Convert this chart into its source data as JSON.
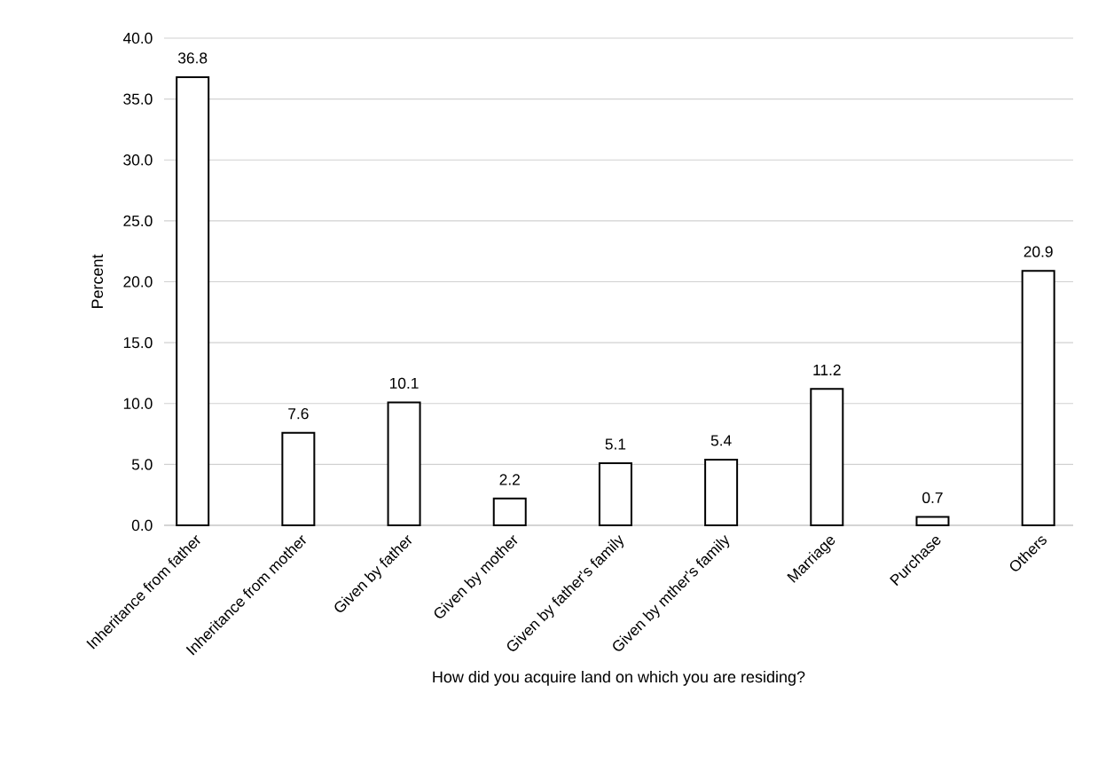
{
  "chart_data": {
    "type": "bar",
    "xlabel": "How did you acquire land on which you are residing?",
    "ylabel": "Percent",
    "categories": [
      "Inheritance from father",
      "Inheritance from mother",
      "Given by father",
      "Given by mother",
      "Given by father's family",
      "Given by mther's family",
      "Marriage",
      "Purchase",
      "Others"
    ],
    "values": [
      36.8,
      7.6,
      10.1,
      2.2,
      5.1,
      5.4,
      11.2,
      0.7,
      20.9
    ],
    "value_labels": [
      "36.8",
      "7.6",
      "10.1",
      "2.2",
      "5.1",
      "5.4",
      "11.2",
      "0.7",
      "20.9"
    ],
    "color": "#ffffff",
    "ylim": [
      0,
      40
    ],
    "yticks": [
      {
        "value": 0,
        "label": "0.0"
      },
      {
        "value": 5,
        "label": "5.0"
      },
      {
        "value": 10,
        "label": "10.0"
      },
      {
        "value": 15,
        "label": "15.0"
      },
      {
        "value": 20,
        "label": "20.0"
      },
      {
        "value": 25,
        "label": "25.0"
      },
      {
        "value": 30,
        "label": "30.0"
      },
      {
        "value": 35,
        "label": "35.0"
      },
      {
        "value": 40,
        "label": "40.0"
      }
    ],
    "grid": "y"
  }
}
